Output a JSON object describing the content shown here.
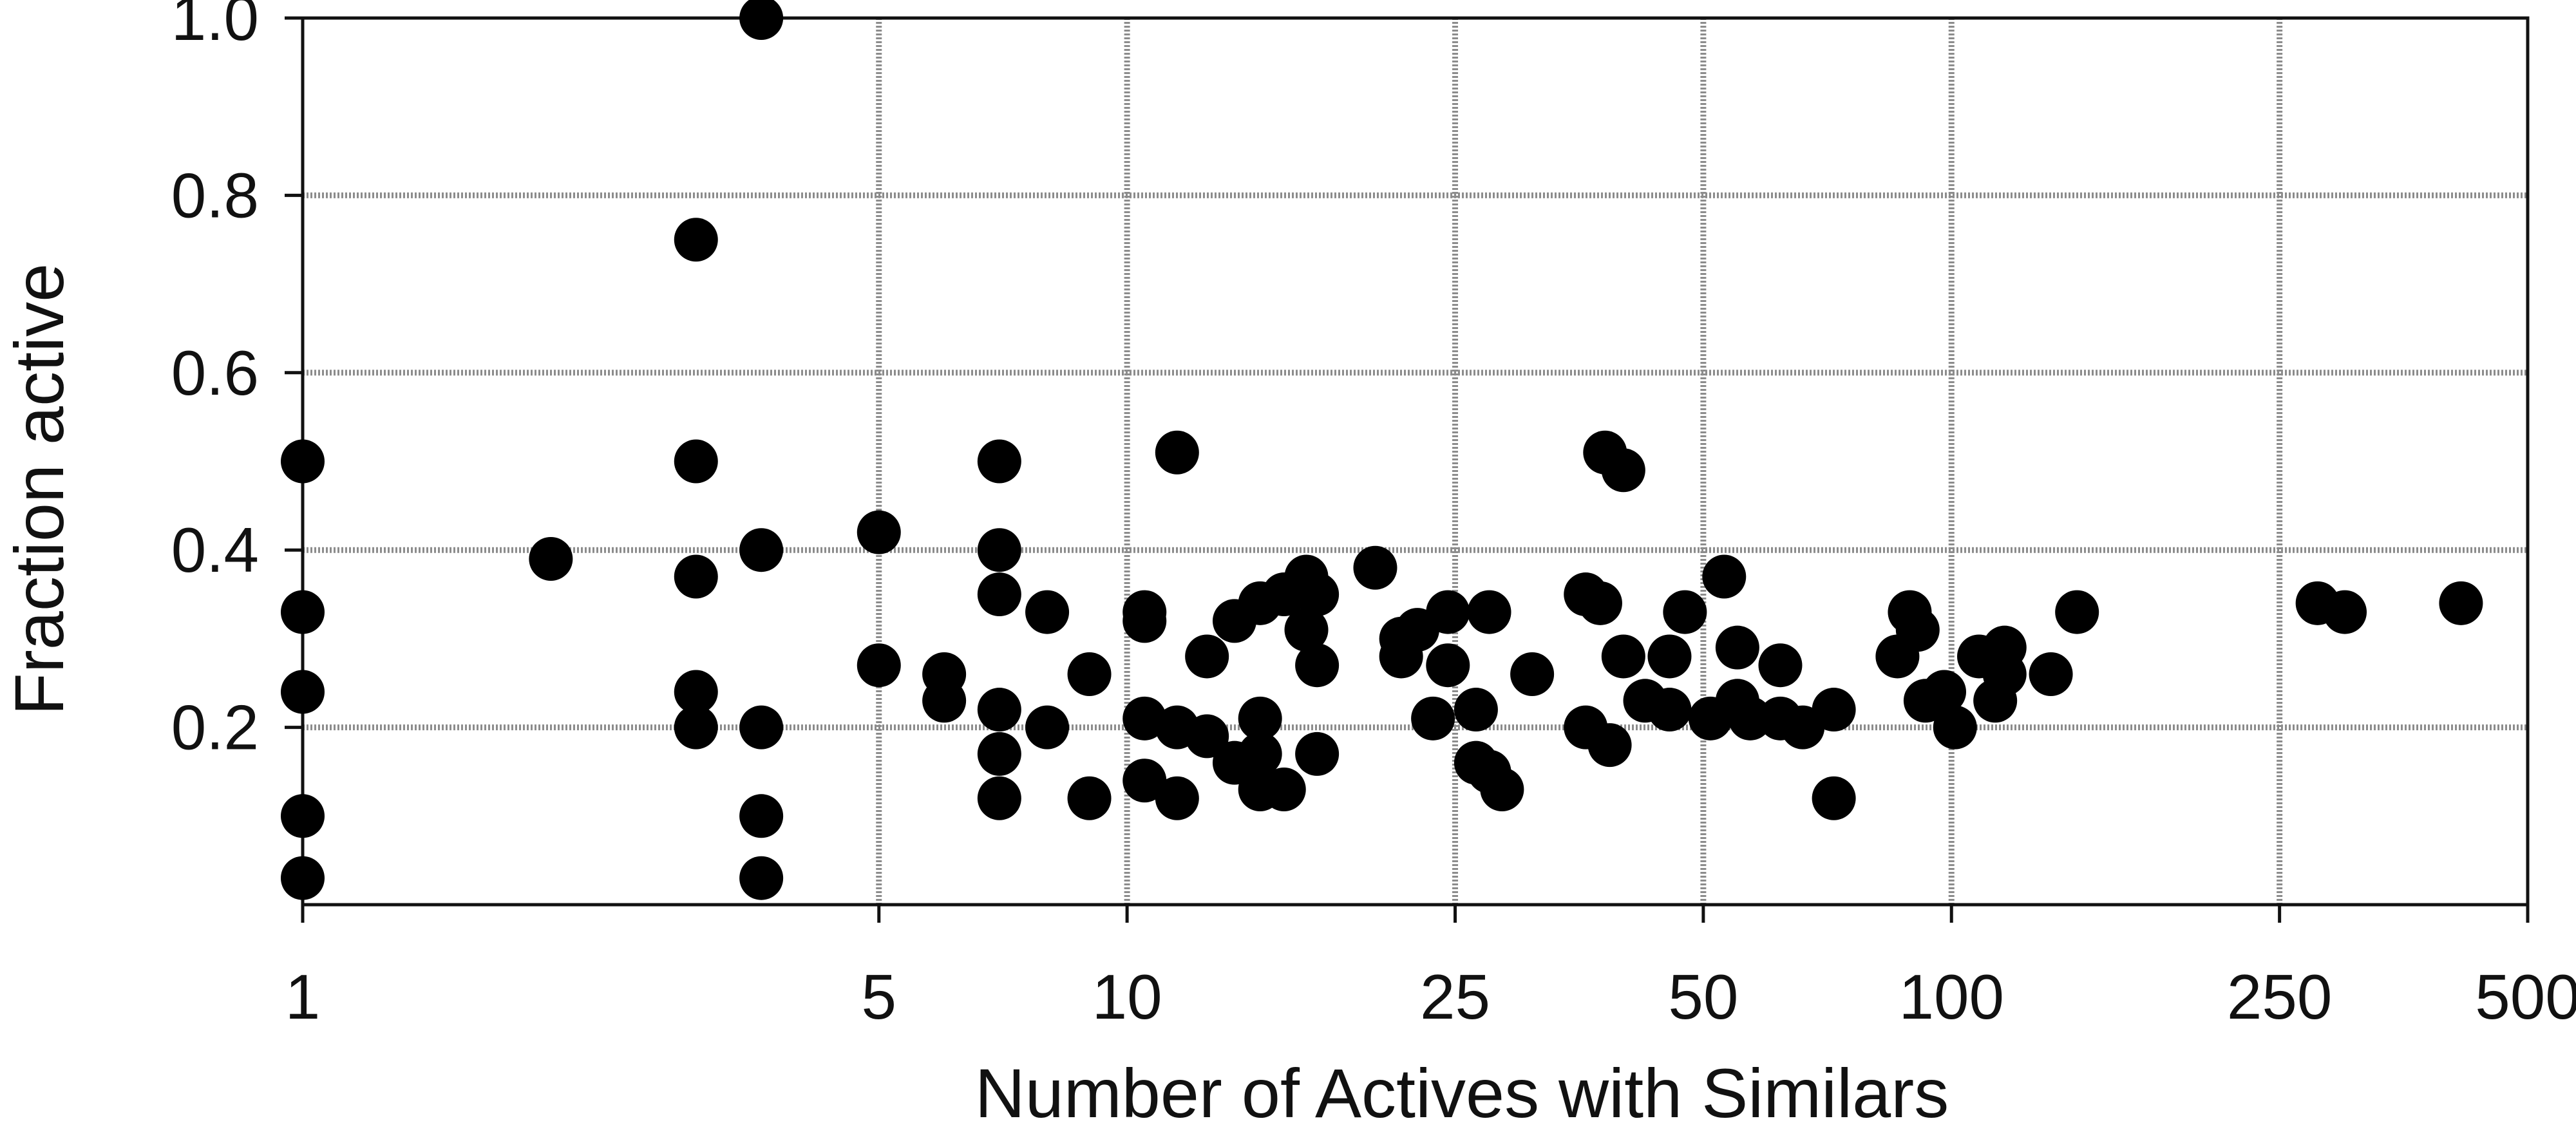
{
  "chart_data": {
    "type": "scatter",
    "title": "",
    "xlabel": "Number of Actives with Similars",
    "ylabel": "Fraction active",
    "x_scale": "log",
    "xlim": [
      1,
      500
    ],
    "ylim": [
      0,
      1.0
    ],
    "x_ticks": [
      1,
      5,
      10,
      25,
      50,
      100,
      250,
      500
    ],
    "x_tick_labels": [
      "1",
      "5",
      "10",
      "25",
      "50",
      "100",
      "250",
      "500"
    ],
    "y_ticks": [
      0.2,
      0.4,
      0.6,
      0.8,
      1.0
    ],
    "y_tick_labels": [
      "0.2",
      "0.4",
      "0.6",
      "0.8",
      "1.0"
    ],
    "grid": true,
    "marker_color": "#000000",
    "grid_color": "#8c8c8c",
    "points": [
      {
        "x": 1,
        "y": 0.5
      },
      {
        "x": 1,
        "y": 0.33
      },
      {
        "x": 1,
        "y": 0.24
      },
      {
        "x": 1,
        "y": 0.1
      },
      {
        "x": 1,
        "y": 0.03
      },
      {
        "x": 2,
        "y": 0.39
      },
      {
        "x": 3,
        "y": 0.75
      },
      {
        "x": 3,
        "y": 0.5
      },
      {
        "x": 3,
        "y": 0.37
      },
      {
        "x": 3,
        "y": 0.24
      },
      {
        "x": 3,
        "y": 0.2
      },
      {
        "x": 3.6,
        "y": 1.0
      },
      {
        "x": 3.6,
        "y": 0.4
      },
      {
        "x": 3.6,
        "y": 0.2
      },
      {
        "x": 3.6,
        "y": 0.1
      },
      {
        "x": 3.6,
        "y": 0.03
      },
      {
        "x": 5,
        "y": 0.42
      },
      {
        "x": 5,
        "y": 0.27
      },
      {
        "x": 6,
        "y": 0.26
      },
      {
        "x": 6,
        "y": 0.23
      },
      {
        "x": 7,
        "y": 0.5
      },
      {
        "x": 7,
        "y": 0.4
      },
      {
        "x": 7,
        "y": 0.35
      },
      {
        "x": 7,
        "y": 0.22
      },
      {
        "x": 7,
        "y": 0.17
      },
      {
        "x": 7,
        "y": 0.12
      },
      {
        "x": 8,
        "y": 0.33
      },
      {
        "x": 8,
        "y": 0.2
      },
      {
        "x": 9,
        "y": 0.26
      },
      {
        "x": 9,
        "y": 0.12
      },
      {
        "x": 10.5,
        "y": 0.33
      },
      {
        "x": 10.5,
        "y": 0.32
      },
      {
        "x": 10.5,
        "y": 0.21
      },
      {
        "x": 10.5,
        "y": 0.14
      },
      {
        "x": 11.5,
        "y": 0.51
      },
      {
        "x": 11.5,
        "y": 0.2
      },
      {
        "x": 11.5,
        "y": 0.12
      },
      {
        "x": 12.5,
        "y": 0.28
      },
      {
        "x": 12.5,
        "y": 0.19
      },
      {
        "x": 13.5,
        "y": 0.32
      },
      {
        "x": 13.5,
        "y": 0.16
      },
      {
        "x": 14.5,
        "y": 0.34
      },
      {
        "x": 14.5,
        "y": 0.21
      },
      {
        "x": 14.5,
        "y": 0.17
      },
      {
        "x": 14.5,
        "y": 0.13
      },
      {
        "x": 15.5,
        "y": 0.35
      },
      {
        "x": 15.5,
        "y": 0.13
      },
      {
        "x": 16.5,
        "y": 0.37
      },
      {
        "x": 16.5,
        "y": 0.31
      },
      {
        "x": 17,
        "y": 0.35
      },
      {
        "x": 17,
        "y": 0.27
      },
      {
        "x": 17,
        "y": 0.17
      },
      {
        "x": 20,
        "y": 0.38
      },
      {
        "x": 21.5,
        "y": 0.3
      },
      {
        "x": 21.5,
        "y": 0.28
      },
      {
        "x": 22.5,
        "y": 0.31
      },
      {
        "x": 23.5,
        "y": 0.21
      },
      {
        "x": 24.5,
        "y": 0.33
      },
      {
        "x": 24.5,
        "y": 0.27
      },
      {
        "x": 26.5,
        "y": 0.22
      },
      {
        "x": 26.5,
        "y": 0.16
      },
      {
        "x": 27.5,
        "y": 0.33
      },
      {
        "x": 27.5,
        "y": 0.15
      },
      {
        "x": 28.5,
        "y": 0.13
      },
      {
        "x": 31,
        "y": 0.26
      },
      {
        "x": 36,
        "y": 0.35
      },
      {
        "x": 36,
        "y": 0.2
      },
      {
        "x": 37.5,
        "y": 0.34
      },
      {
        "x": 38,
        "y": 0.51
      },
      {
        "x": 38.5,
        "y": 0.18
      },
      {
        "x": 40,
        "y": 0.49
      },
      {
        "x": 40,
        "y": 0.28
      },
      {
        "x": 42.5,
        "y": 0.23
      },
      {
        "x": 45.5,
        "y": 0.28
      },
      {
        "x": 45.5,
        "y": 0.22
      },
      {
        "x": 47.5,
        "y": 0.33
      },
      {
        "x": 51,
        "y": 0.21
      },
      {
        "x": 53,
        "y": 0.37
      },
      {
        "x": 55,
        "y": 0.29
      },
      {
        "x": 55,
        "y": 0.23
      },
      {
        "x": 57,
        "y": 0.21
      },
      {
        "x": 62,
        "y": 0.27
      },
      {
        "x": 62,
        "y": 0.21
      },
      {
        "x": 66,
        "y": 0.2
      },
      {
        "x": 72,
        "y": 0.22
      },
      {
        "x": 72,
        "y": 0.12
      },
      {
        "x": 86,
        "y": 0.28
      },
      {
        "x": 89,
        "y": 0.33
      },
      {
        "x": 91,
        "y": 0.31
      },
      {
        "x": 93,
        "y": 0.23
      },
      {
        "x": 98,
        "y": 0.24
      },
      {
        "x": 101,
        "y": 0.2
      },
      {
        "x": 108,
        "y": 0.28
      },
      {
        "x": 113,
        "y": 0.23
      },
      {
        "x": 116,
        "y": 0.29
      },
      {
        "x": 116,
        "y": 0.26
      },
      {
        "x": 132,
        "y": 0.26
      },
      {
        "x": 142,
        "y": 0.33
      },
      {
        "x": 278,
        "y": 0.34
      },
      {
        "x": 300,
        "y": 0.33
      },
      {
        "x": 415,
        "y": 0.34
      }
    ]
  }
}
